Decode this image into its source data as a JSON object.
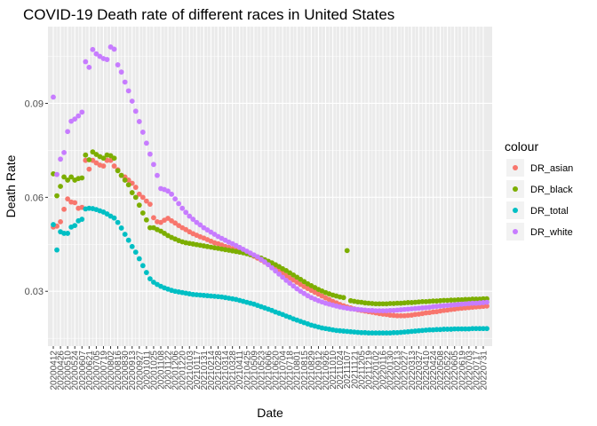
{
  "chart_data": {
    "type": "scatter",
    "title": "COVID-19 Death rate of different races in United States",
    "xlabel": "Date",
    "ylabel": "Death Rate",
    "ylim": [
      0.0125,
      0.1145
    ],
    "yticks": [
      0.03,
      0.06,
      0.09
    ],
    "ytick_labels": [
      "0.03",
      "0.06",
      "0.09"
    ],
    "grid": true,
    "legend": {
      "title": "colour",
      "placement": "right"
    },
    "x_dates": [
      "20200412",
      "20200419",
      "20200426",
      "20200503",
      "20200510",
      "20200517",
      "20200524",
      "20200531",
      "20200607",
      "20200614",
      "20200621",
      "20200628",
      "20200705",
      "20200712",
      "20200719",
      "20200726",
      "20200802",
      "20200809",
      "20200816",
      "20200823",
      "20200830",
      "20200906",
      "20200913",
      "20200920",
      "20200927",
      "20201004",
      "20201011",
      "20201018",
      "20201025",
      "20201101",
      "20201108",
      "20201115",
      "20201122",
      "20201129",
      "20201206",
      "20201213",
      "20201220",
      "20201227",
      "20210103",
      "20210110",
      "20210117",
      "20210124",
      "20210131",
      "20210207",
      "20210214",
      "20210221",
      "20210228",
      "20210307",
      "20210314",
      "20210321",
      "20210328",
      "20210404",
      "20210411",
      "20210418",
      "20210425",
      "20210502",
      "20210509",
      "20210516",
      "20210523",
      "20210530",
      "20210606",
      "20210613",
      "20210620",
      "20210627",
      "20210704",
      "20210711",
      "20210718",
      "20210725",
      "20210801",
      "20210808",
      "20210815",
      "20210822",
      "20210829",
      "20210905",
      "20210912",
      "20210919",
      "20210926",
      "20211003",
      "20211010",
      "20211017",
      "20211024",
      "20211031",
      "20211107",
      "20211114",
      "20211121",
      "20211128",
      "20211205",
      "20211212",
      "20211219",
      "20211226",
      "20220102",
      "20220109",
      "20220116",
      "20220123",
      "20220130",
      "20220206",
      "20220213",
      "20220220",
      "20220227",
      "20220306",
      "20220313",
      "20220320",
      "20220327",
      "20220403",
      "20220410",
      "20220417",
      "20220424",
      "20220501",
      "20220508",
      "20220515",
      "20220522",
      "20220529",
      "20220605",
      "20220612",
      "20220619",
      "20220626",
      "20220703",
      "20220710",
      "20220717",
      "20220724",
      "20220731",
      "20220807"
    ],
    "x_tick_labels": [
      "20200412",
      "20200426",
      "20200510",
      "20200524",
      "20200607",
      "20200621",
      "20200705",
      "20200719",
      "20200802",
      "20200816",
      "20200830",
      "20200913",
      "20200927",
      "20201011",
      "20201025",
      "20201108",
      "20201122",
      "20201206",
      "20201220",
      "20210103",
      "20210117",
      "20210131",
      "20210214",
      "20210228",
      "20210314",
      "20210328",
      "20210411",
      "20210425",
      "20210509",
      "20210523",
      "20210606",
      "20210620",
      "20210704",
      "20210718",
      "20210801",
      "20210815",
      "20210829",
      "20210912",
      "20210926",
      "20211010",
      "20211024",
      "20211107",
      "20211121",
      "20211205",
      "20211219",
      "20220102",
      "20220116",
      "20220130",
      "20220213",
      "20220227",
      "20220313",
      "20220327",
      "20220410",
      "20220424",
      "20220508",
      "20220522",
      "20220605",
      "20220619",
      "20220703",
      "20220717",
      "20220731"
    ],
    "series": [
      {
        "name": "DR_asian",
        "color": "#F8766D",
        "values": [
          0.0505,
          0.0508,
          0.0522,
          0.0562,
          0.0595,
          0.0585,
          0.0583,
          0.0565,
          0.0568,
          0.0718,
          0.069,
          0.0718,
          0.071,
          0.0703,
          0.07,
          0.0718,
          0.0718,
          0.07,
          0.0688,
          0.067,
          0.0665,
          0.0655,
          0.0645,
          0.0632,
          0.061,
          0.06,
          0.0588,
          0.0578,
          0.0535,
          0.0522,
          0.052,
          0.0527,
          0.0533,
          0.0525,
          0.0518,
          0.051,
          0.0503,
          0.0497,
          0.049,
          0.0484,
          0.0479,
          0.0474,
          0.047,
          0.0465,
          0.046,
          0.0455,
          0.0452,
          0.0448,
          0.0443,
          0.044,
          0.0436,
          0.0432,
          0.0428,
          0.0425,
          0.0423,
          0.0418,
          0.0412,
          0.0406,
          0.04,
          0.0393,
          0.0386,
          0.0379,
          0.0372,
          0.0365,
          0.0358,
          0.035,
          0.0343,
          0.0336,
          0.0329,
          0.0322,
          0.0315,
          0.0309,
          0.0303,
          0.0297,
          0.0291,
          0.0285,
          0.0279,
          0.0274,
          0.0268,
          0.0263,
          0.0258,
          0.0254,
          0.025,
          0.0247,
          0.0244,
          0.0241,
          0.0239,
          0.0237,
          0.0235,
          0.0233,
          0.0231,
          0.0229,
          0.0227,
          0.0226,
          0.0224,
          0.0223,
          0.0222,
          0.0222,
          0.0222,
          0.0223,
          0.0224,
          0.0226,
          0.0227,
          0.0229,
          0.0231,
          0.0232,
          0.0234,
          0.0235,
          0.0237,
          0.0239,
          0.024,
          0.0242,
          0.0243,
          0.0245,
          0.0246,
          0.0247,
          0.0248,
          0.0249,
          0.025,
          0.0251,
          0.0252,
          0.0253
        ]
      },
      {
        "name": "DR_black",
        "color": "#7CAE00",
        "values": [
          0.0675,
          0.0605,
          0.0635,
          0.0665,
          0.0655,
          0.0665,
          0.0655,
          0.066,
          0.0662,
          0.0735,
          0.072,
          0.0745,
          0.0737,
          0.073,
          0.0725,
          0.0735,
          0.0733,
          0.0725,
          0.0685,
          0.067,
          0.0655,
          0.064,
          0.0615,
          0.06,
          0.0575,
          0.055,
          0.0528,
          0.0503,
          0.0503,
          0.0497,
          0.0492,
          0.0485,
          0.0478,
          0.0472,
          0.0467,
          0.0462,
          0.0458,
          0.0455,
          0.0453,
          0.0451,
          0.0449,
          0.0447,
          0.0445,
          0.0443,
          0.0441,
          0.0439,
          0.0437,
          0.0435,
          0.0433,
          0.0431,
          0.0429,
          0.0427,
          0.0425,
          0.0423,
          0.042,
          0.0417,
          0.0414,
          0.041,
          0.0406,
          0.0401,
          0.0396,
          0.0391,
          0.0385,
          0.0379,
          0.0372,
          0.0366,
          0.0359,
          0.0352,
          0.0345,
          0.0338,
          0.0331,
          0.0324,
          0.0318,
          0.0312,
          0.0306,
          0.0301,
          0.0296,
          0.0292,
          0.0288,
          0.0285,
          0.0282,
          0.028,
          0.043,
          0.027,
          0.0268,
          0.0266,
          0.0265,
          0.0263,
          0.0262,
          0.0261,
          0.026,
          0.026,
          0.026,
          0.026,
          0.0261,
          0.0261,
          0.0262,
          0.0262,
          0.0263,
          0.0264,
          0.0264,
          0.0265,
          0.0266,
          0.0267,
          0.0267,
          0.0268,
          0.0269,
          0.0269,
          0.027,
          0.0271,
          0.0271,
          0.0272,
          0.0272,
          0.0273,
          0.0273,
          0.0274,
          0.0274,
          0.0275,
          0.0275,
          0.0275,
          0.0276,
          0.0276
        ]
      },
      {
        "name": "DR_total",
        "color": "#00BFC4",
        "values": [
          0.0513,
          0.0432,
          0.049,
          0.0485,
          0.0485,
          0.0505,
          0.051,
          0.0525,
          0.053,
          0.0563,
          0.0565,
          0.0564,
          0.0561,
          0.0557,
          0.0553,
          0.0547,
          0.054,
          0.0534,
          0.052,
          0.0502,
          0.0482,
          0.0463,
          0.0443,
          0.0425,
          0.0404,
          0.0382,
          0.036,
          0.034,
          0.0329,
          0.0322,
          0.0316,
          0.0311,
          0.0307,
          0.0303,
          0.03,
          0.0298,
          0.0296,
          0.0294,
          0.0292,
          0.029,
          0.0289,
          0.0288,
          0.0287,
          0.0286,
          0.0285,
          0.0284,
          0.0283,
          0.0282,
          0.028,
          0.0278,
          0.0276,
          0.0274,
          0.0271,
          0.0268,
          0.0265,
          0.0262,
          0.0259,
          0.0255,
          0.0251,
          0.0247,
          0.0243,
          0.0239,
          0.0234,
          0.023,
          0.0226,
          0.0221,
          0.0217,
          0.0212,
          0.0208,
          0.0204,
          0.02,
          0.0196,
          0.0192,
          0.0189,
          0.0186,
          0.0183,
          0.0181,
          0.0179,
          0.0177,
          0.0175,
          0.0174,
          0.0173,
          0.0172,
          0.0171,
          0.017,
          0.0169,
          0.0168,
          0.0168,
          0.0167,
          0.0167,
          0.0167,
          0.0167,
          0.0167,
          0.0167,
          0.0167,
          0.0168,
          0.0168,
          0.0169,
          0.017,
          0.0171,
          0.0172,
          0.0173,
          0.0174,
          0.0175,
          0.0176,
          0.0177,
          0.0177,
          0.0178,
          0.0178,
          0.0179,
          0.0179,
          0.0179,
          0.018,
          0.018,
          0.018,
          0.018,
          0.018,
          0.0181,
          0.0181,
          0.0181,
          0.0181,
          0.0181
        ]
      },
      {
        "name": "DR_white",
        "color": "#C77CFF",
        "values": [
          0.092,
          0.0673,
          0.0722,
          0.0743,
          0.081,
          0.0843,
          0.085,
          0.086,
          0.0872,
          0.1033,
          0.1015,
          0.1072,
          0.1058,
          0.105,
          0.1043,
          0.104,
          0.108,
          0.1073,
          0.1023,
          0.1,
          0.0968,
          0.094,
          0.0907,
          0.0875,
          0.0842,
          0.0808,
          0.0773,
          0.0738,
          0.0705,
          0.067,
          0.0628,
          0.0625,
          0.062,
          0.061,
          0.0595,
          0.058,
          0.0565,
          0.0552,
          0.054,
          0.053,
          0.052,
          0.0512,
          0.0503,
          0.0496,
          0.0489,
          0.0482,
          0.0475,
          0.0469,
          0.0463,
          0.0457,
          0.0452,
          0.0446,
          0.044,
          0.0434,
          0.0428,
          0.0422,
          0.0416,
          0.041,
          0.0402,
          0.0394,
          0.0385,
          0.0375,
          0.0365,
          0.0355,
          0.0345,
          0.0335,
          0.0326,
          0.0317,
          0.0308,
          0.03,
          0.0293,
          0.0286,
          0.028,
          0.0275,
          0.027,
          0.0266,
          0.0262,
          0.0259,
          0.0256,
          0.0253,
          0.025,
          0.0248,
          0.0246,
          0.0244,
          0.0243,
          0.0242,
          0.0241,
          0.024,
          0.0239,
          0.0239,
          0.0238,
          0.0238,
          0.0238,
          0.0238,
          0.0239,
          0.0239,
          0.024,
          0.0241,
          0.0242,
          0.0243,
          0.0244,
          0.0245,
          0.0246,
          0.0247,
          0.0248,
          0.0249,
          0.0251,
          0.0252,
          0.0253,
          0.0254,
          0.0255,
          0.0256,
          0.0257,
          0.0258,
          0.0259,
          0.026,
          0.0261,
          0.0262,
          0.0262,
          0.0263,
          0.0264,
          0.0265
        ]
      }
    ]
  }
}
